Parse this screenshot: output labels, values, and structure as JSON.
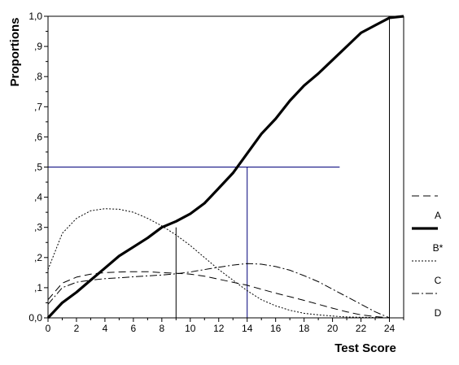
{
  "chart_data": {
    "type": "line",
    "title": "",
    "xlabel": "Test Score",
    "ylabel": "Proportions",
    "xlim": [
      0,
      25
    ],
    "ylim": [
      0,
      1
    ],
    "x_ticks": [
      0,
      2,
      4,
      6,
      8,
      10,
      12,
      14,
      16,
      18,
      20,
      22,
      24
    ],
    "x_tick_labels": [
      "0",
      "2",
      "4",
      "6",
      "8",
      "10",
      "12",
      "14",
      "16",
      "18",
      "20",
      "22",
      "24"
    ],
    "y_ticks": [
      0,
      0.1,
      0.2,
      0.3,
      0.4,
      0.5,
      0.6,
      0.7,
      0.8,
      0.9,
      1.0
    ],
    "y_tick_labels": [
      "0,0",
      ",1",
      ",2",
      ",3",
      ",4",
      ",5",
      ",6",
      ",7",
      ",8",
      ",9",
      "1,0"
    ],
    "grid": false,
    "legend_placement": "right",
    "series": [
      {
        "name": "A",
        "style": "dashed",
        "color": "#000000",
        "x": [
          0,
          1,
          2,
          3,
          4,
          5,
          6,
          7,
          8,
          9,
          10,
          11,
          12,
          13,
          14,
          15,
          16,
          17,
          18,
          19,
          20,
          21,
          22,
          23,
          24
        ],
        "y": [
          0.06,
          0.115,
          0.135,
          0.145,
          0.15,
          0.152,
          0.153,
          0.153,
          0.15,
          0.148,
          0.145,
          0.138,
          0.128,
          0.118,
          0.108,
          0.095,
          0.082,
          0.07,
          0.058,
          0.045,
          0.032,
          0.02,
          0.01,
          0.004,
          0.0
        ]
      },
      {
        "name": "B*",
        "style": "thick",
        "color": "#000000",
        "x": [
          0,
          1,
          2,
          3,
          4,
          5,
          6,
          7,
          8,
          9,
          10,
          11,
          12,
          13,
          14,
          15,
          16,
          17,
          18,
          19,
          20,
          21,
          22,
          23,
          24,
          25
        ],
        "y": [
          0.0,
          0.05,
          0.085,
          0.125,
          0.165,
          0.205,
          0.235,
          0.265,
          0.3,
          0.32,
          0.345,
          0.38,
          0.43,
          0.48,
          0.545,
          0.61,
          0.66,
          0.72,
          0.77,
          0.81,
          0.855,
          0.9,
          0.945,
          0.97,
          0.995,
          1.0
        ]
      },
      {
        "name": "C",
        "style": "dotted",
        "color": "#000000",
        "x": [
          0,
          1,
          2,
          3,
          4,
          5,
          6,
          7,
          8,
          9,
          10,
          11,
          12,
          13,
          14,
          15,
          16,
          17,
          18,
          19,
          20,
          21,
          22,
          23,
          24
        ],
        "y": [
          0.16,
          0.28,
          0.33,
          0.355,
          0.362,
          0.36,
          0.35,
          0.33,
          0.305,
          0.275,
          0.24,
          0.2,
          0.16,
          0.125,
          0.09,
          0.06,
          0.04,
          0.025,
          0.015,
          0.01,
          0.006,
          0.003,
          0.002,
          0.001,
          0.0
        ]
      },
      {
        "name": "D",
        "style": "dashdot",
        "color": "#000000",
        "x": [
          0,
          1,
          2,
          3,
          4,
          5,
          6,
          7,
          8,
          9,
          10,
          11,
          12,
          13,
          14,
          15,
          16,
          17,
          18,
          19,
          20,
          21,
          22,
          23,
          24
        ],
        "y": [
          0.045,
          0.1,
          0.118,
          0.125,
          0.13,
          0.133,
          0.136,
          0.139,
          0.142,
          0.146,
          0.152,
          0.16,
          0.168,
          0.175,
          0.18,
          0.178,
          0.17,
          0.158,
          0.14,
          0.12,
          0.095,
          0.07,
          0.045,
          0.02,
          0.0
        ]
      }
    ],
    "reference_lines": [
      {
        "kind": "horizontal",
        "y": 0.5,
        "x_from": 0,
        "x_to": 20.5,
        "color": "#00007a"
      },
      {
        "kind": "vertical",
        "x": 9,
        "y_from": 0,
        "y_to": 0.3,
        "color": "#000000"
      },
      {
        "kind": "vertical",
        "x": 14,
        "y_from": 0,
        "y_to": 0.5,
        "color": "#00007a"
      },
      {
        "kind": "vertical",
        "x": 24,
        "y_from": 0,
        "y_to": 1.0,
        "color": "#000000"
      }
    ]
  }
}
